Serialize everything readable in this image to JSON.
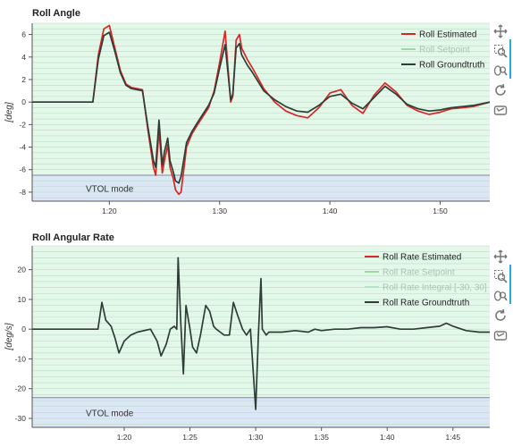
{
  "colors": {
    "plot_bg": "#e4f8ea",
    "region_bg": "#dde6f7",
    "grid": "#b7dcc4",
    "estimated": "#d62728",
    "setpoint": "#9fd7a8",
    "integral": "#b7e2c3",
    "groundtruth": "#2f3d36",
    "region_line": "#7a8a95",
    "toolbar_accent": "#26aae1"
  },
  "toolbar_icons": [
    "pan-icon",
    "box-zoom-icon",
    "wheel-zoom-icon",
    "reset-icon",
    "save-icon"
  ],
  "chart_data": [
    {
      "type": "line",
      "title": "Roll Angle",
      "ylabel": "[deg]",
      "xlabel": "",
      "xlim": [
        1.13,
        1.545
      ],
      "ylim": [
        -8.8,
        7.0
      ],
      "xticks": [
        {
          "value": 1.2,
          "label": "1:20"
        },
        {
          "value": 1.3,
          "label": "1:30"
        },
        {
          "value": 1.4,
          "label": "1:40"
        },
        {
          "value": 1.5,
          "label": "1:50"
        }
      ],
      "yticks": [
        -8,
        -6,
        -4,
        -2,
        0,
        2,
        4,
        6
      ],
      "grid": true,
      "legend_position": "top-right",
      "region": {
        "label": "VTOL mode",
        "y_from": -8.8,
        "y_to": -6.5
      },
      "series": [
        {
          "name": "Roll Estimated",
          "color_key": "estimated",
          "dim": false,
          "x": [
            1.13,
            1.18,
            1.185,
            1.19,
            1.195,
            1.2,
            1.205,
            1.21,
            1.215,
            1.22,
            1.225,
            1.23,
            1.235,
            1.24,
            1.242,
            1.245,
            1.248,
            1.25,
            1.253,
            1.255,
            1.258,
            1.26,
            1.263,
            1.265,
            1.27,
            1.275,
            1.28,
            1.29,
            1.295,
            1.3,
            1.305,
            1.31,
            1.312,
            1.315,
            1.318,
            1.32,
            1.325,
            1.33,
            1.34,
            1.35,
            1.36,
            1.37,
            1.38,
            1.39,
            1.4,
            1.41,
            1.42,
            1.43,
            1.44,
            1.45,
            1.46,
            1.47,
            1.48,
            1.49,
            1.5,
            1.51,
            1.52,
            1.53,
            1.545
          ],
          "y": [
            0,
            0,
            0,
            4.2,
            6.5,
            6.8,
            4.8,
            2.8,
            1.6,
            1.3,
            1.2,
            1.1,
            -2.5,
            -5.8,
            -6.5,
            -2.5,
            -6.3,
            -5.2,
            -3.8,
            -5.8,
            -6.8,
            -7.8,
            -8.2,
            -8.0,
            -4.0,
            -2.8,
            -2.0,
            -0.5,
            1.0,
            3.5,
            6.3,
            0.0,
            0.5,
            5.5,
            6.0,
            4.8,
            3.8,
            3.0,
            1.2,
            0.0,
            -0.8,
            -1.2,
            -1.4,
            -0.5,
            0.8,
            1.1,
            -0.3,
            -1.0,
            0.6,
            1.7,
            0.9,
            -0.3,
            -0.8,
            -1.1,
            -0.9,
            -0.6,
            -0.5,
            -0.4,
            0.0
          ]
        },
        {
          "name": "Roll Setpoint",
          "color_key": "setpoint",
          "dim": true,
          "x": [],
          "y": []
        },
        {
          "name": "Roll Groundtruth",
          "color_key": "groundtruth",
          "dim": false,
          "x": [
            1.13,
            1.18,
            1.185,
            1.19,
            1.195,
            1.2,
            1.205,
            1.21,
            1.215,
            1.22,
            1.225,
            1.23,
            1.235,
            1.24,
            1.242,
            1.245,
            1.248,
            1.25,
            1.253,
            1.255,
            1.258,
            1.26,
            1.263,
            1.265,
            1.27,
            1.275,
            1.28,
            1.29,
            1.295,
            1.3,
            1.305,
            1.31,
            1.312,
            1.315,
            1.318,
            1.32,
            1.325,
            1.33,
            1.34,
            1.35,
            1.36,
            1.37,
            1.38,
            1.39,
            1.4,
            1.41,
            1.42,
            1.43,
            1.44,
            1.45,
            1.46,
            1.47,
            1.48,
            1.49,
            1.5,
            1.51,
            1.52,
            1.53,
            1.545
          ],
          "y": [
            0,
            0,
            0,
            3.8,
            5.9,
            6.2,
            4.5,
            2.6,
            1.5,
            1.2,
            1.1,
            1.0,
            -2.2,
            -5.2,
            -5.8,
            -1.6,
            -5.6,
            -4.4,
            -3.2,
            -5.2,
            -6.2,
            -7.0,
            -7.2,
            -6.6,
            -3.6,
            -2.6,
            -1.8,
            -0.3,
            0.8,
            3.0,
            5.1,
            0.2,
            0.7,
            4.8,
            5.2,
            4.2,
            3.3,
            2.6,
            1.0,
            0.2,
            -0.4,
            -0.8,
            -0.9,
            -0.3,
            0.5,
            0.7,
            -0.1,
            -0.6,
            0.4,
            1.4,
            0.7,
            -0.2,
            -0.6,
            -0.8,
            -0.7,
            -0.5,
            -0.4,
            -0.3,
            0.0
          ]
        }
      ]
    },
    {
      "type": "line",
      "title": "Roll Angular Rate",
      "ylabel": "[deg/s]",
      "xlabel": "",
      "xlim": [
        1.13,
        1.478
      ],
      "ylim": [
        -33,
        28
      ],
      "xticks": [
        {
          "value": 1.2,
          "label": "1:20"
        },
        {
          "value": 1.25,
          "label": "1:25"
        },
        {
          "value": 1.3,
          "label": "1:30"
        },
        {
          "value": 1.35,
          "label": "1:35"
        },
        {
          "value": 1.4,
          "label": "1:40"
        },
        {
          "value": 1.45,
          "label": "1:45"
        }
      ],
      "yticks": [
        -30,
        -20,
        -10,
        0,
        10,
        20
      ],
      "grid": true,
      "legend_position": "top-right",
      "region": {
        "label": "VTOL mode",
        "y_from": -33,
        "y_to": -23
      },
      "series": [
        {
          "name": "Roll Rate Estimated",
          "color_key": "estimated",
          "dim": false,
          "x": [],
          "y": []
        },
        {
          "name": "Roll Rate Setpoint",
          "color_key": "setpoint",
          "dim": true,
          "x": [],
          "y": []
        },
        {
          "name": "Roll Rate Integral [-30, 30]",
          "color_key": "integral",
          "dim": true,
          "x": [],
          "y": []
        },
        {
          "name": "Roll Rate Groundtruth",
          "color_key": "groundtruth",
          "dim": false,
          "x": [
            1.13,
            1.165,
            1.18,
            1.183,
            1.186,
            1.19,
            1.193,
            1.196,
            1.2,
            1.205,
            1.21,
            1.22,
            1.225,
            1.228,
            1.232,
            1.235,
            1.238,
            1.24,
            1.241,
            1.243,
            1.245,
            1.247,
            1.25,
            1.252,
            1.255,
            1.258,
            1.262,
            1.265,
            1.268,
            1.27,
            1.273,
            1.276,
            1.28,
            1.283,
            1.286,
            1.29,
            1.293,
            1.296,
            1.3,
            1.302,
            1.304,
            1.305,
            1.308,
            1.31,
            1.312,
            1.315,
            1.318,
            1.32,
            1.33,
            1.34,
            1.345,
            1.35,
            1.36,
            1.37,
            1.38,
            1.39,
            1.4,
            1.41,
            1.42,
            1.43,
            1.44,
            1.445,
            1.45,
            1.46,
            1.47,
            1.478
          ],
          "y": [
            0,
            0,
            0,
            9,
            3,
            1,
            -3,
            -8,
            -4,
            -2,
            -1,
            0,
            -4,
            -9,
            -5,
            0,
            1,
            0,
            24,
            2,
            -15,
            8,
            0,
            -6,
            -8,
            -2,
            8,
            6,
            1,
            0,
            -1,
            -2,
            -2,
            9,
            5,
            0,
            -2,
            0,
            -27,
            -2,
            17,
            0,
            -2,
            -1,
            -1,
            -1,
            -1,
            -1,
            -0.5,
            -1,
            0,
            -0.5,
            0,
            0,
            0.5,
            0.5,
            0.8,
            0,
            0,
            0.5,
            1,
            2,
            1,
            -0.5,
            -1,
            -1
          ]
        }
      ]
    }
  ]
}
